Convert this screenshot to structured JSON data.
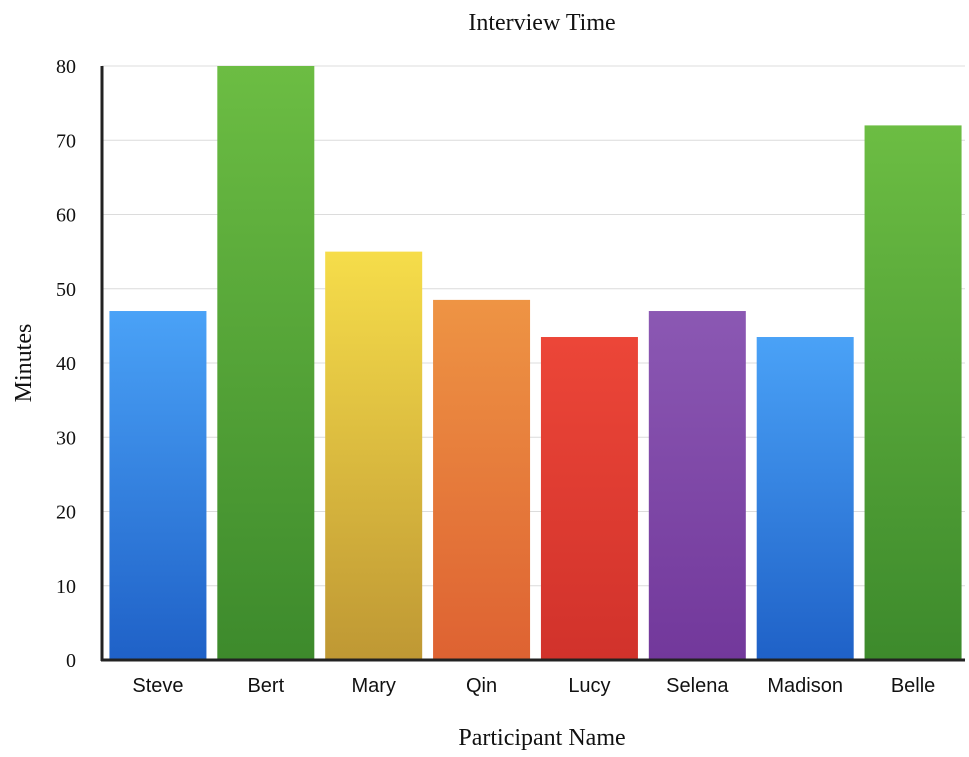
{
  "chart_data": {
    "type": "bar",
    "title": "Interview Time",
    "xlabel": "Participant Name",
    "ylabel": "Minutes",
    "categories": [
      "Steve",
      "Bert",
      "Mary",
      "Qin",
      "Lucy",
      "Selena",
      "Madison",
      "Belle"
    ],
    "values": [
      47,
      80,
      55,
      48.5,
      43.5,
      47,
      43.5,
      72
    ],
    "ylim": [
      0,
      80
    ],
    "yticks": [
      0,
      10,
      20,
      30,
      40,
      50,
      60,
      70,
      80
    ],
    "grid": true,
    "legend": "none",
    "bar_colors": [
      [
        "#4aa2f7",
        "#1f61c7"
      ],
      [
        "#6cbd43",
        "#3d8a2c"
      ],
      [
        "#f6dd4a",
        "#bf9834"
      ],
      [
        "#ee9444",
        "#de6232"
      ],
      [
        "#ec4638",
        "#d1322b"
      ],
      [
        "#8b58b3",
        "#72389b"
      ],
      [
        "#4aa2f7",
        "#1f61c7"
      ],
      [
        "#6cbd43",
        "#3d8a2c"
      ]
    ],
    "grid_color": "#dcdcdc",
    "axis_color": "#222222"
  }
}
